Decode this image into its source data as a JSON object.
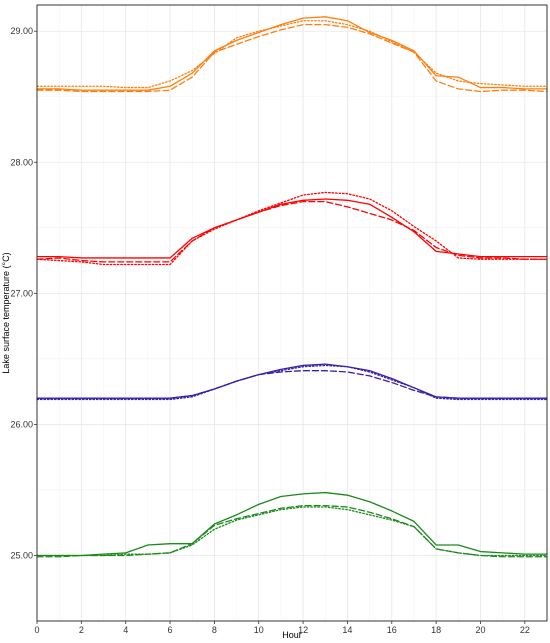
{
  "chart_data": {
    "type": "line",
    "title": "",
    "xlabel": "Hour",
    "ylabel": "Lake surface temperature (°C)",
    "xlim": [
      0,
      23
    ],
    "ylim": [
      24.5,
      29.2
    ],
    "xticks": [
      0,
      2,
      4,
      6,
      8,
      10,
      12,
      14,
      16,
      18,
      20,
      22
    ],
    "xtick_labels": [
      "0",
      "2",
      "4",
      "6",
      "8",
      "10",
      "12",
      "14",
      "16",
      "18",
      "20",
      "22"
    ],
    "yticks": [
      25,
      26,
      27,
      28,
      29
    ],
    "ytick_labels": [
      "25.00",
      "26.00",
      "27.00",
      "28.00",
      "29.00"
    ],
    "grid": true,
    "legend": "none",
    "x": [
      0,
      1,
      2,
      3,
      4,
      5,
      6,
      7,
      8,
      9,
      10,
      11,
      12,
      13,
      14,
      15,
      16,
      17,
      18,
      19,
      20,
      21,
      22,
      23
    ],
    "series": [
      {
        "color": "#ff7f0e",
        "style": "solid",
        "values": [
          28.56,
          28.56,
          28.55,
          28.55,
          28.55,
          28.55,
          28.58,
          28.68,
          28.85,
          28.93,
          28.99,
          29.05,
          29.1,
          29.11,
          29.08,
          28.99,
          28.93,
          28.85,
          28.66,
          28.65,
          28.57,
          28.57,
          28.56,
          28.56
        ]
      },
      {
        "color": "#ff7f0e",
        "style": "dashed",
        "values": [
          28.55,
          28.55,
          28.54,
          28.54,
          28.54,
          28.54,
          28.55,
          28.65,
          28.84,
          28.9,
          28.96,
          29.01,
          29.05,
          29.05,
          29.03,
          28.98,
          28.91,
          28.84,
          28.62,
          28.56,
          28.54,
          28.55,
          28.55,
          28.54
        ]
      },
      {
        "color": "#ff7f0e",
        "style": "dotted",
        "values": [
          28.58,
          28.58,
          28.58,
          28.58,
          28.57,
          28.57,
          28.62,
          28.7,
          28.83,
          28.95,
          29.0,
          29.04,
          29.08,
          29.08,
          29.05,
          29.0,
          28.92,
          28.84,
          28.68,
          28.62,
          28.6,
          28.59,
          28.58,
          28.58
        ]
      },
      {
        "color": "#ff0000",
        "style": "solid",
        "values": [
          27.28,
          27.28,
          27.27,
          27.27,
          27.27,
          27.27,
          27.27,
          27.42,
          27.5,
          27.56,
          27.62,
          27.68,
          27.71,
          27.72,
          27.71,
          27.68,
          27.58,
          27.47,
          27.32,
          27.3,
          27.28,
          27.28,
          27.28,
          27.28
        ]
      },
      {
        "color": "#ff0000",
        "style": "dashed",
        "values": [
          27.26,
          27.27,
          27.25,
          27.24,
          27.24,
          27.24,
          27.24,
          27.4,
          27.5,
          27.56,
          27.62,
          27.67,
          27.7,
          27.7,
          27.66,
          27.61,
          27.56,
          27.48,
          27.35,
          27.29,
          27.27,
          27.27,
          27.26,
          27.26
        ]
      },
      {
        "color": "#ff0000",
        "style": "dotted",
        "values": [
          27.26,
          27.25,
          27.24,
          27.22,
          27.22,
          27.22,
          27.22,
          27.4,
          27.49,
          27.56,
          27.63,
          27.69,
          27.75,
          27.77,
          27.76,
          27.72,
          27.63,
          27.51,
          27.4,
          27.27,
          27.26,
          27.26,
          27.26,
          27.26
        ]
      },
      {
        "color": "#3b1fa8",
        "style": "solid",
        "values": [
          26.2,
          26.2,
          26.2,
          26.2,
          26.2,
          26.2,
          26.2,
          26.22,
          26.27,
          26.33,
          26.38,
          26.42,
          26.45,
          26.46,
          26.44,
          26.41,
          26.35,
          26.28,
          26.21,
          26.2,
          26.2,
          26.2,
          26.2,
          26.2
        ]
      },
      {
        "color": "#3b1fa8",
        "style": "dashed",
        "values": [
          26.2,
          26.2,
          26.2,
          26.2,
          26.2,
          26.2,
          26.2,
          26.22,
          26.27,
          26.33,
          26.38,
          26.4,
          26.41,
          26.41,
          26.4,
          26.37,
          26.32,
          26.26,
          26.21,
          26.2,
          26.2,
          26.2,
          26.2,
          26.2
        ]
      },
      {
        "color": "#3b1fa8",
        "style": "dotted",
        "values": [
          26.19,
          26.19,
          26.19,
          26.19,
          26.19,
          26.19,
          26.19,
          26.21,
          26.27,
          26.33,
          26.38,
          26.41,
          26.44,
          26.45,
          26.44,
          26.4,
          26.34,
          26.28,
          26.2,
          26.19,
          26.19,
          26.19,
          26.19,
          26.19
        ]
      },
      {
        "color": "#1a8a1a",
        "style": "solid",
        "values": [
          25.0,
          25.0,
          25.0,
          25.01,
          25.02,
          25.08,
          25.09,
          25.09,
          25.24,
          25.31,
          25.39,
          25.45,
          25.47,
          25.48,
          25.46,
          25.41,
          25.34,
          25.26,
          25.08,
          25.08,
          25.03,
          25.02,
          25.01,
          25.01
        ]
      },
      {
        "color": "#1a8a1a",
        "style": "dashed",
        "values": [
          24.99,
          24.99,
          25.0,
          25.0,
          25.0,
          25.01,
          25.02,
          25.09,
          25.23,
          25.28,
          25.32,
          25.36,
          25.38,
          25.38,
          25.37,
          25.33,
          25.28,
          25.22,
          25.05,
          25.02,
          25.0,
          24.99,
          24.99,
          24.99
        ]
      },
      {
        "color": "#1a8a1a",
        "style": "dotted",
        "values": [
          25.0,
          25.0,
          25.0,
          25.0,
          25.01,
          25.01,
          25.02,
          25.08,
          25.2,
          25.27,
          25.31,
          25.35,
          25.37,
          25.37,
          25.35,
          25.31,
          25.27,
          25.22,
          25.05,
          25.02,
          25.0,
          25.0,
          25.0,
          25.0
        ]
      }
    ]
  }
}
